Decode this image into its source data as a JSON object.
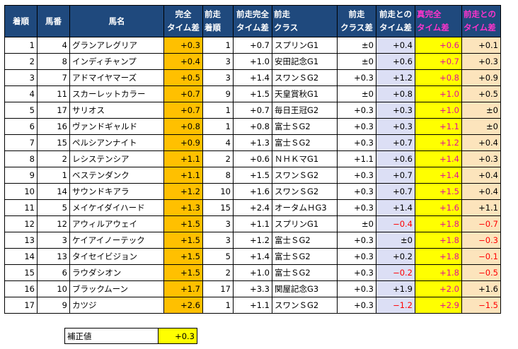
{
  "headers": {
    "finish": "着順",
    "number": "馬番",
    "horse": "馬名",
    "full_diff": [
      "完全",
      "タイム差"
    ],
    "prev_finish": [
      "前走",
      "着順"
    ],
    "prev_full_diff": [
      "前走完全",
      "タイム差"
    ],
    "prev_class": [
      "前走",
      "クラス"
    ],
    "class_diff": [
      "前走",
      "クラス差"
    ],
    "prev_time_diff": [
      "前走との",
      "タイム差"
    ],
    "true_full_diff": [
      "真完全",
      "タイム差"
    ],
    "prev_time_diff2": [
      "前走との",
      "タイム差"
    ]
  },
  "rows": [
    {
      "finish": "1",
      "num": "4",
      "name": "グランアレグリア",
      "full": "+0.3",
      "pfin": "1",
      "pfull": "+0.7",
      "pclass": "スプリンG1",
      "cdiff": "±0",
      "ptd": "+0.4",
      "ptd_neg": false,
      "tfull": "+0.6",
      "ptd2": "+0.1",
      "ptd2_neg": false
    },
    {
      "finish": "2",
      "num": "8",
      "name": "インディチャンプ",
      "full": "+0.4",
      "pfin": "3",
      "pfull": "+1.0",
      "pclass": "安田記念G1",
      "cdiff": "±0",
      "ptd": "+0.6",
      "ptd_neg": false,
      "tfull": "+0.7",
      "ptd2": "+0.3",
      "ptd2_neg": false
    },
    {
      "finish": "3",
      "num": "7",
      "name": "アドマイヤマーズ",
      "full": "+0.5",
      "pfin": "3",
      "pfull": "+1.4",
      "pclass": "スワンＳG2",
      "cdiff": "+0.3",
      "ptd": "+1.2",
      "ptd_neg": false,
      "tfull": "+0.8",
      "ptd2": "+0.9",
      "ptd2_neg": false
    },
    {
      "finish": "4",
      "num": "11",
      "name": "スカーレットカラー",
      "full": "+0.7",
      "pfin": "9",
      "pfull": "+1.5",
      "pclass": "天皇賞秋G1",
      "cdiff": "±0",
      "ptd": "+0.8",
      "ptd_neg": false,
      "tfull": "+1.0",
      "ptd2": "+0.5",
      "ptd2_neg": false
    },
    {
      "finish": "5",
      "num": "17",
      "name": "サリオス",
      "full": "+0.7",
      "pfin": "1",
      "pfull": "+0.7",
      "pclass": "毎日王冠G2",
      "cdiff": "+0.3",
      "ptd": "+0.3",
      "ptd_neg": false,
      "tfull": "+1.0",
      "ptd2": "±0",
      "ptd2_neg": false
    },
    {
      "finish": "6",
      "num": "16",
      "name": "ヴァンドギャルド",
      "full": "+0.8",
      "pfin": "1",
      "pfull": "+0.8",
      "pclass": "富士ＳG2",
      "cdiff": "+0.3",
      "ptd": "+0.3",
      "ptd_neg": false,
      "tfull": "+1.1",
      "ptd2": "±0",
      "ptd2_neg": false
    },
    {
      "finish": "7",
      "num": "15",
      "name": "ペルシアンナイト",
      "full": "+0.9",
      "pfin": "4",
      "pfull": "+1.3",
      "pclass": "富士ＳG2",
      "cdiff": "+0.3",
      "ptd": "+0.7",
      "ptd_neg": false,
      "tfull": "+1.2",
      "ptd2": "+0.4",
      "ptd2_neg": false
    },
    {
      "finish": "8",
      "num": "2",
      "name": "レシステンシア",
      "full": "+1.1",
      "pfin": "2",
      "pfull": "+0.6",
      "pclass": "ＮＨＫマG1",
      "cdiff": "+1.1",
      "ptd": "+0.6",
      "ptd_neg": false,
      "tfull": "+1.4",
      "ptd2": "+0.3",
      "ptd2_neg": false
    },
    {
      "finish": "9",
      "num": "1",
      "name": "ベステンダンク",
      "full": "+1.1",
      "pfin": "8",
      "pfull": "+1.5",
      "pclass": "スワンＳG2",
      "cdiff": "+0.3",
      "ptd": "+0.7",
      "ptd_neg": false,
      "tfull": "+1.4",
      "ptd2": "+0.4",
      "ptd2_neg": false
    },
    {
      "finish": "10",
      "num": "14",
      "name": "サウンドキアラ",
      "full": "+1.2",
      "pfin": "10",
      "pfull": "+1.6",
      "pclass": "スワンＳG2",
      "cdiff": "+0.3",
      "ptd": "+0.7",
      "ptd_neg": false,
      "tfull": "+1.5",
      "ptd2": "+0.4",
      "ptd2_neg": false
    },
    {
      "finish": "11",
      "num": "5",
      "name": "メイケイダイハード",
      "full": "+1.3",
      "pfin": "15",
      "pfull": "+2.4",
      "pclass": "オータムＨG3",
      "cdiff": "+0.3",
      "ptd": "+1.4",
      "ptd_neg": false,
      "tfull": "+1.6",
      "ptd2": "+1.1",
      "ptd2_neg": false
    },
    {
      "finish": "12",
      "num": "12",
      "name": "アウィルアウェイ",
      "full": "+1.5",
      "pfin": "3",
      "pfull": "+1.1",
      "pclass": "スプリンG1",
      "cdiff": "±0",
      "ptd": "−0.4",
      "ptd_neg": true,
      "tfull": "+1.8",
      "ptd2": "−0.7",
      "ptd2_neg": true
    },
    {
      "finish": "13",
      "num": "3",
      "name": "ケイアイノーテック",
      "full": "+1.5",
      "pfin": "3",
      "pfull": "+1.2",
      "pclass": "富士ＳG2",
      "cdiff": "+0.3",
      "ptd": "±0",
      "ptd_neg": false,
      "tfull": "+1.8",
      "ptd2": "−0.3",
      "ptd2_neg": true
    },
    {
      "finish": "14",
      "num": "13",
      "name": "タイセイビジョン",
      "full": "+1.5",
      "pfin": "5",
      "pfull": "+1.4",
      "pclass": "富士ＳG2",
      "cdiff": "+0.3",
      "ptd": "+0.2",
      "ptd_neg": false,
      "tfull": "+1.8",
      "ptd2": "−0.1",
      "ptd2_neg": true
    },
    {
      "finish": "15",
      "num": "6",
      "name": "ラウダシオン",
      "full": "+1.5",
      "pfin": "2",
      "pfull": "+1.0",
      "pclass": "富士ＳG2",
      "cdiff": "+0.3",
      "ptd": "−0.2",
      "ptd_neg": true,
      "tfull": "+1.8",
      "ptd2": "−0.5",
      "ptd2_neg": true
    },
    {
      "finish": "16",
      "num": "10",
      "name": "ブラックムーン",
      "full": "+1.7",
      "pfin": "17",
      "pfull": "+3.3",
      "pclass": "関屋記念G3",
      "cdiff": "+0.3",
      "ptd": "+1.9",
      "ptd_neg": false,
      "tfull": "+2.0",
      "ptd2": "+1.6",
      "ptd2_neg": false
    },
    {
      "finish": "17",
      "num": "9",
      "name": "カツジ",
      "full": "+2.6",
      "pfin": "1",
      "pfull": "+1.1",
      "pclass": "スワンＳG2",
      "cdiff": "+0.3",
      "ptd": "−1.2",
      "ptd_neg": true,
      "tfull": "+2.9",
      "ptd2": "−1.5",
      "ptd2_neg": true
    }
  ],
  "correction": {
    "label": "補正値",
    "value": "+0.3"
  }
}
